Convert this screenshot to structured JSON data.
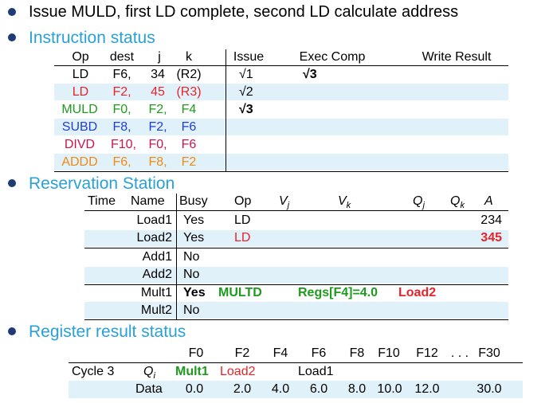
{
  "title": "Issue MULD, first LD complete, second LD calculate address",
  "colors": {
    "heading": "#2aa0d8",
    "red": "#e8232a",
    "green": "#1e9a1e",
    "blue": "#1f3fd8",
    "magenta": "#c8174f",
    "orange": "#f08a12",
    "band": "#e1f1fa"
  },
  "instruction_status": {
    "heading": "Instruction status",
    "headers": {
      "op": "Op",
      "dest": "dest",
      "j": "j",
      "k": "k",
      "issue": "Issue",
      "exec": "Exec Comp",
      "write": "Write Result"
    },
    "rows": [
      {
        "op": "LD",
        "dest": "F6,",
        "j": "34",
        "k": "(R2)",
        "issue": "√1",
        "exec": "√3",
        "write": ""
      },
      {
        "op": "LD",
        "dest": "F2,",
        "j": "45",
        "k": "(R3)",
        "issue": "√2",
        "exec": "",
        "write": ""
      },
      {
        "op": "MULD",
        "dest": "F0,",
        "j": "F2,",
        "k": "F4",
        "issue": "√3",
        "exec": "",
        "write": ""
      },
      {
        "op": "SUBD",
        "dest": "F8,",
        "j": "F2,",
        "k": "F6",
        "issue": "",
        "exec": "",
        "write": ""
      },
      {
        "op": "DIVD",
        "dest": "F10,",
        "j": "F0,",
        "k": "F6",
        "issue": "",
        "exec": "",
        "write": ""
      },
      {
        "op": "ADDD",
        "dest": "F6,",
        "j": "F8,",
        "k": "F2",
        "issue": "",
        "exec": "",
        "write": ""
      }
    ]
  },
  "reservation_station": {
    "heading": "Reservation Station",
    "headers": {
      "time": "Time",
      "name": "Name",
      "busy": "Busy",
      "op": "Op",
      "vj": "V",
      "vj_sub": "j",
      "vk": "V",
      "vk_sub": "k",
      "qj": "Q",
      "qj_sub": "j",
      "qk": "Q",
      "qk_sub": "k",
      "a": "A"
    },
    "rows": [
      {
        "name": "Load1",
        "busy": "Yes",
        "op": "LD",
        "vj": "",
        "vk": "",
        "qj": "",
        "qk": "",
        "a": "234"
      },
      {
        "name": "Load2",
        "busy": "Yes",
        "op": "LD",
        "vj": "",
        "vk": "",
        "qj": "",
        "qk": "",
        "a": "345"
      },
      {
        "name": "Add1",
        "busy": "No",
        "op": "",
        "vj": "",
        "vk": "",
        "qj": "",
        "qk": "",
        "a": ""
      },
      {
        "name": "Add2",
        "busy": "No",
        "op": "",
        "vj": "",
        "vk": "",
        "qj": "",
        "qk": "",
        "a": ""
      },
      {
        "name": "Mult1",
        "busy": "Yes",
        "op": "MULTD",
        "vj": "",
        "vk": "Regs[F4]=4.0",
        "qj": "Load2",
        "qk": "",
        "a": ""
      },
      {
        "name": "Mult2",
        "busy": "No",
        "op": "",
        "vj": "",
        "vk": "",
        "qj": "",
        "qk": "",
        "a": ""
      }
    ]
  },
  "register_status": {
    "heading": "Register result status",
    "registers": [
      "F0",
      "F2",
      "F4",
      "F6",
      "F8",
      "F10",
      "F12",
      ". . .",
      "F30"
    ],
    "cycle_label": "Cycle 3",
    "qi_label": "Q",
    "qi_sub": "i",
    "qi": [
      "Mult1",
      "Load2",
      "",
      "Load1",
      "",
      "",
      "",
      "",
      ""
    ],
    "data_label": "Data",
    "data": [
      "0.0",
      "2.0",
      "4.0",
      "6.0",
      "8.0",
      "10.0",
      "12.0",
      "",
      "30.0"
    ]
  }
}
